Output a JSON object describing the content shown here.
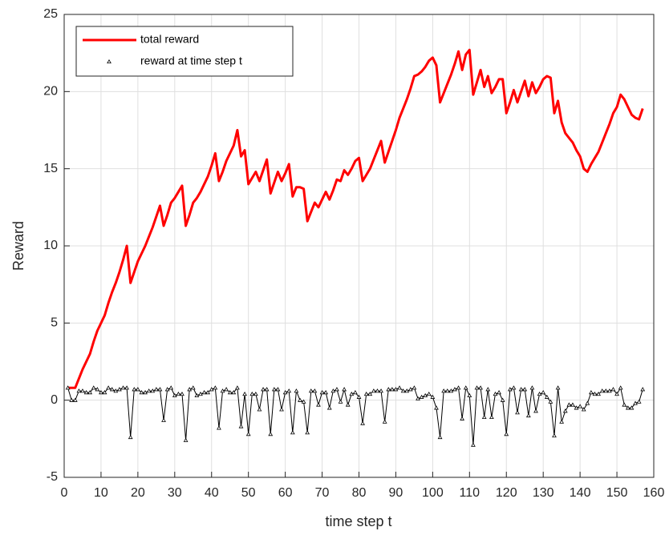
{
  "chart_data": {
    "type": "line",
    "xlabel": "time step t",
    "ylabel": "Reward",
    "x": [
      1,
      2,
      3,
      4,
      5,
      6,
      7,
      8,
      9,
      10,
      11,
      12,
      13,
      14,
      15,
      16,
      17,
      18,
      19,
      20,
      21,
      22,
      23,
      24,
      25,
      26,
      27,
      28,
      29,
      30,
      31,
      32,
      33,
      34,
      35,
      36,
      37,
      38,
      39,
      40,
      41,
      42,
      43,
      44,
      45,
      46,
      47,
      48,
      49,
      50,
      51,
      52,
      53,
      54,
      55,
      56,
      57,
      58,
      59,
      60,
      61,
      62,
      63,
      64,
      65,
      66,
      67,
      68,
      69,
      70,
      71,
      72,
      73,
      74,
      75,
      76,
      77,
      78,
      79,
      80,
      81,
      82,
      83,
      84,
      85,
      86,
      87,
      88,
      89,
      90,
      91,
      92,
      93,
      94,
      95,
      96,
      97,
      98,
      99,
      100,
      101,
      102,
      103,
      104,
      105,
      106,
      107,
      108,
      109,
      110,
      111,
      112,
      113,
      114,
      115,
      116,
      117,
      118,
      119,
      120,
      121,
      122,
      123,
      124,
      125,
      126,
      127,
      128,
      129,
      130,
      131,
      132,
      133,
      134,
      135,
      136,
      137,
      138,
      139,
      140,
      141,
      142,
      143,
      144,
      145,
      146,
      147,
      148,
      149,
      150,
      151,
      152,
      153,
      154,
      155,
      156,
      157
    ],
    "series": [
      {
        "name": "total reward",
        "color": "#ff0000",
        "marker": "none",
        "values": [
          0.8,
          0.8,
          0.8,
          1.4,
          2,
          2.5,
          3,
          3.8,
          4.5,
          5,
          5.5,
          6.3,
          7,
          7.6,
          8.3,
          9.1,
          10,
          7.6,
          8.3,
          9,
          9.5,
          10,
          10.6,
          11.2,
          11.9,
          12.6,
          11.3,
          12,
          12.8,
          13.1,
          13.5,
          13.9,
          11.3,
          12,
          12.8,
          13.1,
          13.5,
          14,
          14.5,
          15.2,
          16,
          14.2,
          14.8,
          15.5,
          16,
          16.5,
          17.5,
          15.8,
          16.2,
          14,
          14.4,
          14.8,
          14.2,
          14.9,
          15.6,
          13.4,
          14.1,
          14.8,
          14.2,
          14.7,
          15.3,
          13.2,
          13.8,
          13.8,
          13.7,
          11.6,
          12.2,
          12.8,
          12.5,
          13,
          13.5,
          13,
          13.6,
          14.3,
          14.2,
          14.9,
          14.6,
          15,
          15.5,
          15.7,
          14.2,
          14.6,
          15,
          15.6,
          16.2,
          16.8,
          15.4,
          16.1,
          16.8,
          17.5,
          18.3,
          18.9,
          19.5,
          20.2,
          21,
          21.1,
          21.3,
          21.6,
          22,
          22.2,
          21.7,
          19.3,
          19.9,
          20.5,
          21.1,
          21.8,
          22.6,
          21.4,
          22.4,
          22.7,
          19.8,
          20.6,
          21.4,
          20.3,
          21,
          19.9,
          20.3,
          20.8,
          20.8,
          18.6,
          19.3,
          20.1,
          19.3,
          20,
          20.7,
          19.7,
          20.6,
          19.9,
          20.3,
          20.8,
          21,
          20.9,
          18.6,
          19.4,
          18,
          17.3,
          17,
          16.7,
          16.2,
          15.8,
          15,
          14.8,
          15.3,
          15.7,
          16.1,
          16.7,
          17.3,
          17.9,
          18.6,
          19,
          19.8,
          19.5,
          19,
          18.5,
          18.3,
          18.2,
          18.9
        ]
      },
      {
        "name": "reward at time step t",
        "color": "#000000",
        "marker": "triangle",
        "values": [
          0.8,
          0,
          0,
          0.6,
          0.6,
          0.5,
          0.5,
          0.8,
          0.7,
          0.5,
          0.5,
          0.8,
          0.7,
          0.6,
          0.7,
          0.8,
          0.8,
          -2.4,
          0.7,
          0.7,
          0.5,
          0.5,
          0.6,
          0.6,
          0.7,
          0.7,
          -1.3,
          0.7,
          0.8,
          0.3,
          0.4,
          0.4,
          -2.6,
          0.7,
          0.8,
          0.3,
          0.4,
          0.5,
          0.5,
          0.7,
          0.8,
          -1.8,
          0.6,
          0.7,
          0.5,
          0.5,
          0.8,
          -1.7,
          0.4,
          -2.2,
          0.4,
          0.4,
          -0.6,
          0.7,
          0.7,
          -2.2,
          0.7,
          0.7,
          -0.6,
          0.5,
          0.6,
          -2.1,
          0.6,
          0,
          -0.1,
          -2.1,
          0.6,
          0.6,
          -0.3,
          0.5,
          0.5,
          -0.5,
          0.6,
          0.7,
          -0.1,
          0.7,
          -0.3,
          0.4,
          0.5,
          0.2,
          -1.5,
          0.4,
          0.4,
          0.6,
          0.6,
          0.6,
          -1.4,
          0.7,
          0.7,
          0.7,
          0.8,
          0.6,
          0.6,
          0.7,
          0.8,
          0.1,
          0.2,
          0.3,
          0.4,
          0.2,
          -0.5,
          -2.4,
          0.6,
          0.6,
          0.6,
          0.7,
          0.8,
          -1.2,
          0.8,
          0.3,
          -2.9,
          0.8,
          0.8,
          -1.1,
          0.7,
          -1.1,
          0.4,
          0.5,
          0,
          -2.2,
          0.7,
          0.8,
          -0.8,
          0.7,
          0.7,
          -1,
          0.8,
          -0.7,
          0.4,
          0.5,
          0.2,
          -0.1,
          -2.3,
          0.8,
          -1.4,
          -0.7,
          -0.3,
          -0.3,
          -0.5,
          -0.4,
          -0.6,
          -0.2,
          0.5,
          0.4,
          0.4,
          0.6,
          0.6,
          0.6,
          0.7,
          0.4,
          0.8,
          -0.3,
          -0.5,
          -0.5,
          -0.2,
          -0.1,
          0.7
        ]
      }
    ],
    "xlim": [
      0,
      160
    ],
    "xticks": [
      0,
      10,
      20,
      30,
      40,
      50,
      60,
      70,
      80,
      90,
      100,
      110,
      120,
      130,
      140,
      150,
      160
    ],
    "ylim": [
      -5,
      25
    ],
    "yticks": [
      -5,
      0,
      5,
      10,
      15,
      20,
      25
    ],
    "grid": true,
    "legend": "upper left"
  }
}
